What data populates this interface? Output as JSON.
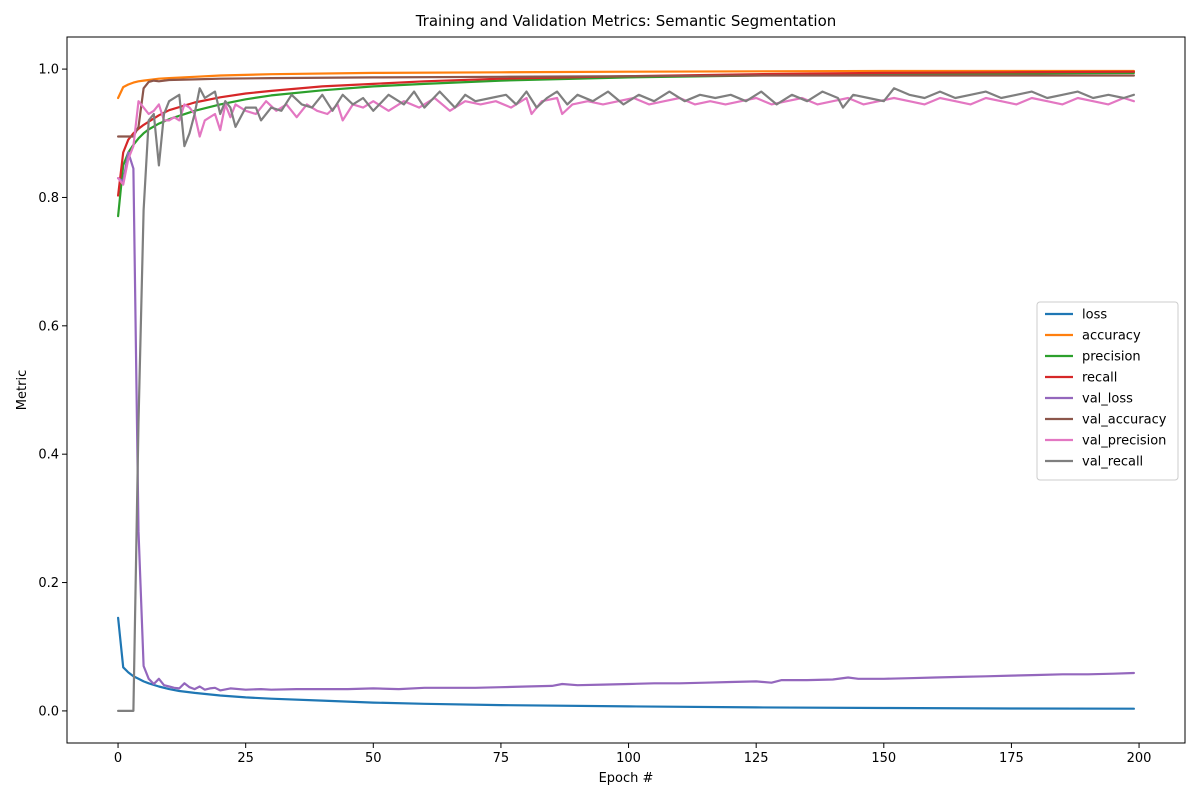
{
  "chart_data": {
    "type": "line",
    "title": "Training and Validation Metrics: Semantic Segmentation",
    "xlabel": "Epoch #",
    "ylabel": "Metric",
    "xlim": [
      -10,
      209
    ],
    "ylim": [
      -0.05,
      1.05
    ],
    "xticks": [
      0,
      25,
      50,
      75,
      100,
      125,
      150,
      175,
      200
    ],
    "yticks": [
      0.0,
      0.2,
      0.4,
      0.6,
      0.8,
      1.0
    ],
    "xtick_labels": [
      "0",
      "25",
      "50",
      "75",
      "100",
      "125",
      "150",
      "175",
      "200"
    ],
    "ytick_labels": [
      "0.0",
      "0.2",
      "0.4",
      "0.6",
      "0.8",
      "1.0"
    ],
    "grid": false,
    "legend_position": "center-right",
    "series": [
      {
        "name": "loss",
        "color": "#1f77b4",
        "x": [
          0,
          1,
          2,
          3,
          4,
          5,
          6,
          8,
          10,
          12,
          15,
          20,
          25,
          30,
          40,
          50,
          60,
          75,
          100,
          125,
          150,
          175,
          199
        ],
        "y": [
          0.145,
          0.068,
          0.06,
          0.054,
          0.05,
          0.046,
          0.043,
          0.038,
          0.034,
          0.031,
          0.028,
          0.024,
          0.021,
          0.019,
          0.016,
          0.013,
          0.011,
          0.009,
          0.007,
          0.0055,
          0.0045,
          0.0038,
          0.0035
        ]
      },
      {
        "name": "accuracy",
        "color": "#ff7f0e",
        "x": [
          0,
          1,
          2,
          3,
          4,
          5,
          6,
          8,
          10,
          15,
          20,
          30,
          50,
          75,
          100,
          150,
          199
        ],
        "y": [
          0.955,
          0.972,
          0.976,
          0.979,
          0.981,
          0.982,
          0.983,
          0.985,
          0.986,
          0.988,
          0.99,
          0.992,
          0.994,
          0.995,
          0.996,
          0.997,
          0.997
        ]
      },
      {
        "name": "precision",
        "color": "#2ca02c",
        "x": [
          0,
          1,
          2,
          3,
          4,
          5,
          6,
          8,
          10,
          15,
          20,
          25,
          30,
          40,
          50,
          60,
          75,
          100,
          125,
          150,
          175,
          199
        ],
        "y": [
          0.771,
          0.85,
          0.87,
          0.882,
          0.892,
          0.9,
          0.906,
          0.915,
          0.922,
          0.935,
          0.945,
          0.953,
          0.959,
          0.967,
          0.973,
          0.977,
          0.982,
          0.987,
          0.99,
          0.992,
          0.993,
          0.994
        ]
      },
      {
        "name": "recall",
        "color": "#d62728",
        "x": [
          0,
          1,
          2,
          3,
          4,
          5,
          6,
          8,
          10,
          15,
          20,
          25,
          30,
          40,
          50,
          60,
          75,
          100,
          125,
          150,
          175,
          199
        ],
        "y": [
          0.803,
          0.87,
          0.89,
          0.9,
          0.907,
          0.913,
          0.918,
          0.928,
          0.936,
          0.948,
          0.956,
          0.962,
          0.966,
          0.973,
          0.977,
          0.981,
          0.985,
          0.989,
          0.992,
          0.994,
          0.995,
          0.996
        ]
      },
      {
        "name": "val_loss",
        "color": "#9467bd",
        "x": [
          0,
          1,
          2,
          3,
          4,
          5,
          6,
          7,
          8,
          9,
          10,
          11,
          12,
          13,
          14,
          15,
          16,
          17,
          18,
          19,
          20,
          22,
          25,
          28,
          30,
          35,
          40,
          45,
          50,
          55,
          60,
          65,
          70,
          75,
          80,
          85,
          87,
          90,
          95,
          100,
          105,
          110,
          115,
          120,
          125,
          128,
          130,
          135,
          140,
          143,
          145,
          150,
          155,
          160,
          165,
          170,
          175,
          180,
          185,
          190,
          195,
          199
        ],
        "y": [
          0.83,
          0.825,
          0.87,
          0.845,
          0.28,
          0.07,
          0.05,
          0.042,
          0.05,
          0.04,
          0.038,
          0.036,
          0.035,
          0.043,
          0.037,
          0.034,
          0.038,
          0.033,
          0.035,
          0.036,
          0.032,
          0.035,
          0.033,
          0.034,
          0.033,
          0.034,
          0.034,
          0.034,
          0.035,
          0.034,
          0.036,
          0.036,
          0.036,
          0.037,
          0.038,
          0.039,
          0.042,
          0.04,
          0.041,
          0.042,
          0.043,
          0.043,
          0.044,
          0.045,
          0.046,
          0.044,
          0.048,
          0.048,
          0.049,
          0.052,
          0.05,
          0.05,
          0.051,
          0.052,
          0.053,
          0.054,
          0.055,
          0.056,
          0.057,
          0.057,
          0.058,
          0.059
        ]
      },
      {
        "name": "val_accuracy",
        "color": "#8c564b",
        "x": [
          0,
          1,
          2,
          3,
          4,
          5,
          6,
          7,
          8,
          10,
          15,
          20,
          30,
          50,
          75,
          100,
          125,
          150,
          175,
          199
        ],
        "y": [
          0.895,
          0.895,
          0.895,
          0.895,
          0.91,
          0.97,
          0.98,
          0.982,
          0.981,
          0.983,
          0.984,
          0.985,
          0.986,
          0.987,
          0.988,
          0.989,
          0.99,
          0.99,
          0.99,
          0.99
        ]
      },
      {
        "name": "val_precision",
        "color": "#e377c2",
        "x": [
          0,
          1,
          2,
          3,
          4,
          5,
          6,
          7,
          8,
          9,
          10,
          11,
          12,
          13,
          14,
          15,
          16,
          17,
          18,
          19,
          20,
          21,
          22,
          23,
          25,
          27,
          29,
          31,
          33,
          35,
          37,
          39,
          41,
          43,
          44,
          46,
          48,
          50,
          53,
          56,
          59,
          62,
          65,
          68,
          71,
          74,
          77,
          80,
          81,
          83,
          86,
          87,
          89,
          92,
          95,
          98,
          101,
          104,
          107,
          110,
          113,
          116,
          119,
          122,
          125,
          128,
          131,
          134,
          137,
          140,
          143,
          146,
          149,
          152,
          155,
          158,
          161,
          164,
          167,
          170,
          173,
          176,
          179,
          182,
          185,
          188,
          191,
          194,
          197,
          199
        ],
        "y": [
          0.83,
          0.82,
          0.86,
          0.88,
          0.95,
          0.94,
          0.93,
          0.935,
          0.945,
          0.92,
          0.92,
          0.925,
          0.92,
          0.945,
          0.94,
          0.93,
          0.895,
          0.92,
          0.925,
          0.93,
          0.905,
          0.945,
          0.925,
          0.945,
          0.935,
          0.93,
          0.95,
          0.935,
          0.945,
          0.925,
          0.945,
          0.935,
          0.93,
          0.945,
          0.92,
          0.945,
          0.94,
          0.95,
          0.935,
          0.95,
          0.94,
          0.955,
          0.935,
          0.95,
          0.945,
          0.95,
          0.94,
          0.955,
          0.93,
          0.95,
          0.955,
          0.93,
          0.945,
          0.95,
          0.945,
          0.95,
          0.955,
          0.945,
          0.95,
          0.955,
          0.945,
          0.95,
          0.945,
          0.95,
          0.955,
          0.945,
          0.95,
          0.955,
          0.945,
          0.95,
          0.955,
          0.945,
          0.95,
          0.955,
          0.95,
          0.945,
          0.955,
          0.95,
          0.945,
          0.955,
          0.95,
          0.945,
          0.955,
          0.95,
          0.945,
          0.955,
          0.95,
          0.945,
          0.955,
          0.95
        ]
      },
      {
        "name": "val_recall",
        "color": "#7f7f7f",
        "x": [
          0,
          1,
          2,
          3,
          4,
          5,
          6,
          7,
          8,
          9,
          10,
          12,
          13,
          14,
          15,
          16,
          17,
          19,
          20,
          21,
          22,
          23,
          25,
          27,
          28,
          30,
          32,
          34,
          36,
          38,
          40,
          42,
          44,
          46,
          48,
          50,
          53,
          56,
          58,
          60,
          63,
          66,
          68,
          70,
          73,
          76,
          78,
          80,
          82,
          84,
          86,
          88,
          90,
          93,
          96,
          99,
          102,
          105,
          108,
          111,
          114,
          117,
          120,
          123,
          126,
          129,
          132,
          135,
          138,
          141,
          142,
          144,
          147,
          150,
          152,
          155,
          158,
          161,
          164,
          167,
          170,
          173,
          176,
          179,
          182,
          185,
          188,
          191,
          194,
          197,
          199
        ],
        "y": [
          0.0,
          0.0,
          0.0,
          0.0,
          0.45,
          0.78,
          0.92,
          0.93,
          0.85,
          0.93,
          0.95,
          0.96,
          0.88,
          0.9,
          0.93,
          0.97,
          0.955,
          0.965,
          0.93,
          0.95,
          0.94,
          0.91,
          0.94,
          0.94,
          0.92,
          0.94,
          0.935,
          0.96,
          0.945,
          0.94,
          0.96,
          0.935,
          0.96,
          0.945,
          0.955,
          0.935,
          0.96,
          0.945,
          0.965,
          0.94,
          0.965,
          0.94,
          0.96,
          0.95,
          0.955,
          0.96,
          0.945,
          0.965,
          0.94,
          0.955,
          0.965,
          0.945,
          0.96,
          0.95,
          0.965,
          0.945,
          0.96,
          0.95,
          0.965,
          0.95,
          0.96,
          0.955,
          0.96,
          0.95,
          0.965,
          0.945,
          0.96,
          0.95,
          0.965,
          0.955,
          0.94,
          0.96,
          0.955,
          0.95,
          0.97,
          0.96,
          0.955,
          0.965,
          0.955,
          0.96,
          0.965,
          0.955,
          0.96,
          0.965,
          0.955,
          0.96,
          0.965,
          0.955,
          0.96,
          0.955,
          0.96
        ]
      }
    ]
  }
}
